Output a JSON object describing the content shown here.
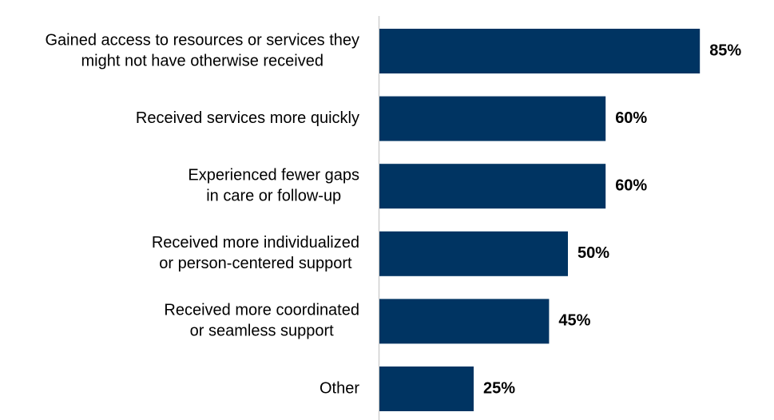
{
  "chart_data": {
    "type": "bar",
    "orientation": "horizontal",
    "categories": [
      [
        "Gained access to resources or services they",
        "might not have otherwise received"
      ],
      [
        "Received services more quickly"
      ],
      [
        "Experienced fewer gaps",
        "in care or follow-up"
      ],
      [
        "Received more individualized",
        "or person-centered support"
      ],
      [
        "Received more coordinated",
        "or seamless support"
      ],
      [
        "Other"
      ]
    ],
    "values": [
      85,
      60,
      60,
      50,
      45,
      25
    ],
    "value_labels": [
      "85%",
      "60%",
      "60%",
      "50%",
      "45%",
      "25%"
    ],
    "color": "#003462"
  }
}
